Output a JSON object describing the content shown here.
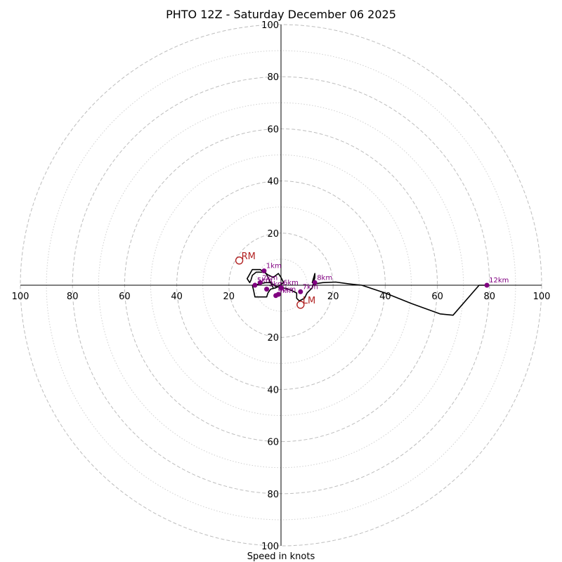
{
  "chart_data": {
    "type": "hodograph",
    "title": "PHTO 12Z - Saturday December 06 2025",
    "xlabel": "Speed in knots",
    "units": "knots",
    "range": [
      -100,
      100
    ],
    "ring_major_step": 20,
    "ring_minor_step": 10,
    "tick_values": [
      100,
      80,
      60,
      40,
      20
    ],
    "tick_labels": [
      "100",
      "80",
      "60",
      "40",
      "20"
    ],
    "trace": [
      {
        "u": -3,
        "v": -1
      },
      {
        "u": -6.5,
        "v": 6
      },
      {
        "u": -7,
        "v": 5
      },
      {
        "u": -9.5,
        "v": 5
      },
      {
        "u": -11,
        "v": 3.8
      },
      {
        "u": -11.5,
        "v": 2
      },
      {
        "u": -12,
        "v": 1
      },
      {
        "u": -13,
        "v": 2.5
      },
      {
        "u": -11,
        "v": 6
      },
      {
        "u": -8,
        "v": 6
      },
      {
        "u": -5,
        "v": 4
      },
      {
        "u": -3,
        "v": 3
      },
      {
        "u": -1,
        "v": 4.5
      },
      {
        "u": 0,
        "v": 3
      },
      {
        "u": 1,
        "v": 1
      },
      {
        "u": -2,
        "v": -1
      },
      {
        "u": -4,
        "v": -1.5
      },
      {
        "u": -5,
        "v": -3
      },
      {
        "u": -5.5,
        "v": -4.5
      },
      {
        "u": -10,
        "v": -4.5
      },
      {
        "u": -10.5,
        "v": -2
      },
      {
        "u": -11,
        "v": 0
      },
      {
        "u": -8,
        "v": 0.5
      },
      {
        "u": -6,
        "v": 1
      },
      {
        "u": -4,
        "v": 1
      },
      {
        "u": -2,
        "v": -0.5
      },
      {
        "u": 0,
        "v": -1
      },
      {
        "u": 2,
        "v": -1.2
      },
      {
        "u": 4,
        "v": -2
      },
      {
        "u": 6,
        "v": -3
      },
      {
        "u": 6,
        "v": -5
      },
      {
        "u": 7,
        "v": -6
      },
      {
        "u": 9,
        "v": -5
      },
      {
        "u": 10,
        "v": -3
      },
      {
        "u": 12,
        "v": -1
      },
      {
        "u": 12.5,
        "v": 1
      },
      {
        "u": 13,
        "v": 3
      },
      {
        "u": 13,
        "v": 4.5
      },
      {
        "u": 12,
        "v": 1
      },
      {
        "u": 13,
        "v": 0.5
      },
      {
        "u": 16,
        "v": 1
      },
      {
        "u": 21,
        "v": 1.2
      },
      {
        "u": 26,
        "v": 0.5
      },
      {
        "u": 31,
        "v": 0
      },
      {
        "u": 40,
        "v": -3
      },
      {
        "u": 50,
        "v": -7
      },
      {
        "u": 61,
        "v": -11
      },
      {
        "u": 66,
        "v": -11.5
      },
      {
        "u": 76,
        "v": 0
      },
      {
        "u": 79,
        "v": 0
      }
    ],
    "height_markers": [
      {
        "label": "1km",
        "u": -6.5,
        "v": 5.5
      },
      {
        "label": "2km",
        "u": -8,
        "v": 1
      },
      {
        "label": "3km",
        "u": -5.5,
        "v": -1.5
      },
      {
        "label": "4km",
        "u": -1,
        "v": -3.5
      },
      {
        "label": "5km",
        "u": -10,
        "v": 0
      },
      {
        "label": "6km",
        "u": 0,
        "v": -1
      },
      {
        "label": "7km",
        "u": 7.5,
        "v": -2.5
      },
      {
        "label": "8km",
        "u": 13,
        "v": 1
      },
      {
        "label": "9km",
        "u": -2,
        "v": -4
      },
      {
        "label": "12km",
        "u": 79,
        "v": 0
      }
    ],
    "storm_motions": [
      {
        "label": "RM",
        "u": -16,
        "v": 9.5
      },
      {
        "label": "LM",
        "u": 7.5,
        "v": -7.5
      }
    ]
  }
}
